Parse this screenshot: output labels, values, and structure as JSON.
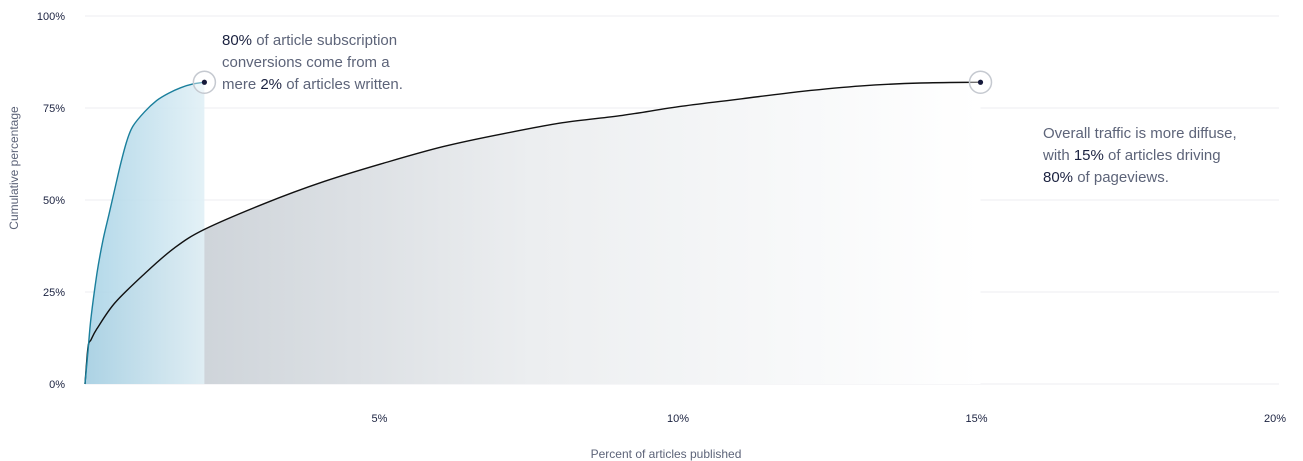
{
  "chart_data": {
    "type": "area",
    "xlabel": "Percent of articles published",
    "ylabel": "Cumulative percentage",
    "xlim": [
      0,
      20
    ],
    "ylim": [
      0,
      100
    ],
    "x_ticks": [
      {
        "value": 5,
        "label": "5%"
      },
      {
        "value": 10,
        "label": "10%"
      },
      {
        "value": 15,
        "label": "15%"
      },
      {
        "value": 20,
        "label": "20%"
      }
    ],
    "y_ticks": [
      {
        "value": 0,
        "label": "0%"
      },
      {
        "value": 25,
        "label": "25%"
      },
      {
        "value": 50,
        "label": "50%"
      },
      {
        "value": 75,
        "label": "75%"
      },
      {
        "value": 100,
        "label": "100%"
      }
    ],
    "grid": true,
    "series": [
      {
        "color": "#1a7f9c",
        "x": [
          0,
          0.05,
          0.1,
          0.2,
          0.3,
          0.4,
          0.5,
          0.6,
          0.7,
          0.8,
          1.0,
          1.2,
          1.4,
          1.6,
          1.8,
          2.0
        ],
        "y": [
          0,
          9,
          18,
          30,
          39,
          46,
          53,
          60,
          66,
          70,
          74,
          77,
          79,
          80.5,
          81.5,
          82
        ]
      },
      {
        "color": "#111111",
        "x": [
          0,
          0.05,
          0.1,
          0.2,
          0.5,
          1.0,
          1.5,
          2.0,
          3.0,
          4.0,
          5.0,
          6.0,
          7.0,
          8.0,
          9.0,
          10.0,
          11.0,
          12.0,
          13.0,
          14.0,
          15.0
        ],
        "y": [
          0,
          10,
          12,
          15,
          22,
          30,
          37,
          42,
          49,
          55,
          60,
          64.5,
          68,
          71,
          73,
          75.5,
          77.5,
          79.5,
          81,
          81.8,
          82
        ]
      }
    ],
    "highlight_points": [
      {
        "x": 2,
        "y": 82
      },
      {
        "x": 15,
        "y": 82
      }
    ]
  },
  "annotations": [
    {
      "parts": [
        {
          "text": "80%",
          "hl": true
        },
        {
          "text": " of article subscription conversions come from a mere ",
          "hl": false
        },
        {
          "text": "2%",
          "hl": true
        },
        {
          "text": " of articles written.",
          "hl": false
        }
      ]
    },
    {
      "parts": [
        {
          "text": "Overall traffic is more diffuse, with ",
          "hl": false
        },
        {
          "text": "15%",
          "hl": true
        },
        {
          "text": " of articles driving ",
          "hl": false
        },
        {
          "text": "80%",
          "hl": true
        },
        {
          "text": " of pageviews.",
          "hl": false
        }
      ]
    }
  ]
}
